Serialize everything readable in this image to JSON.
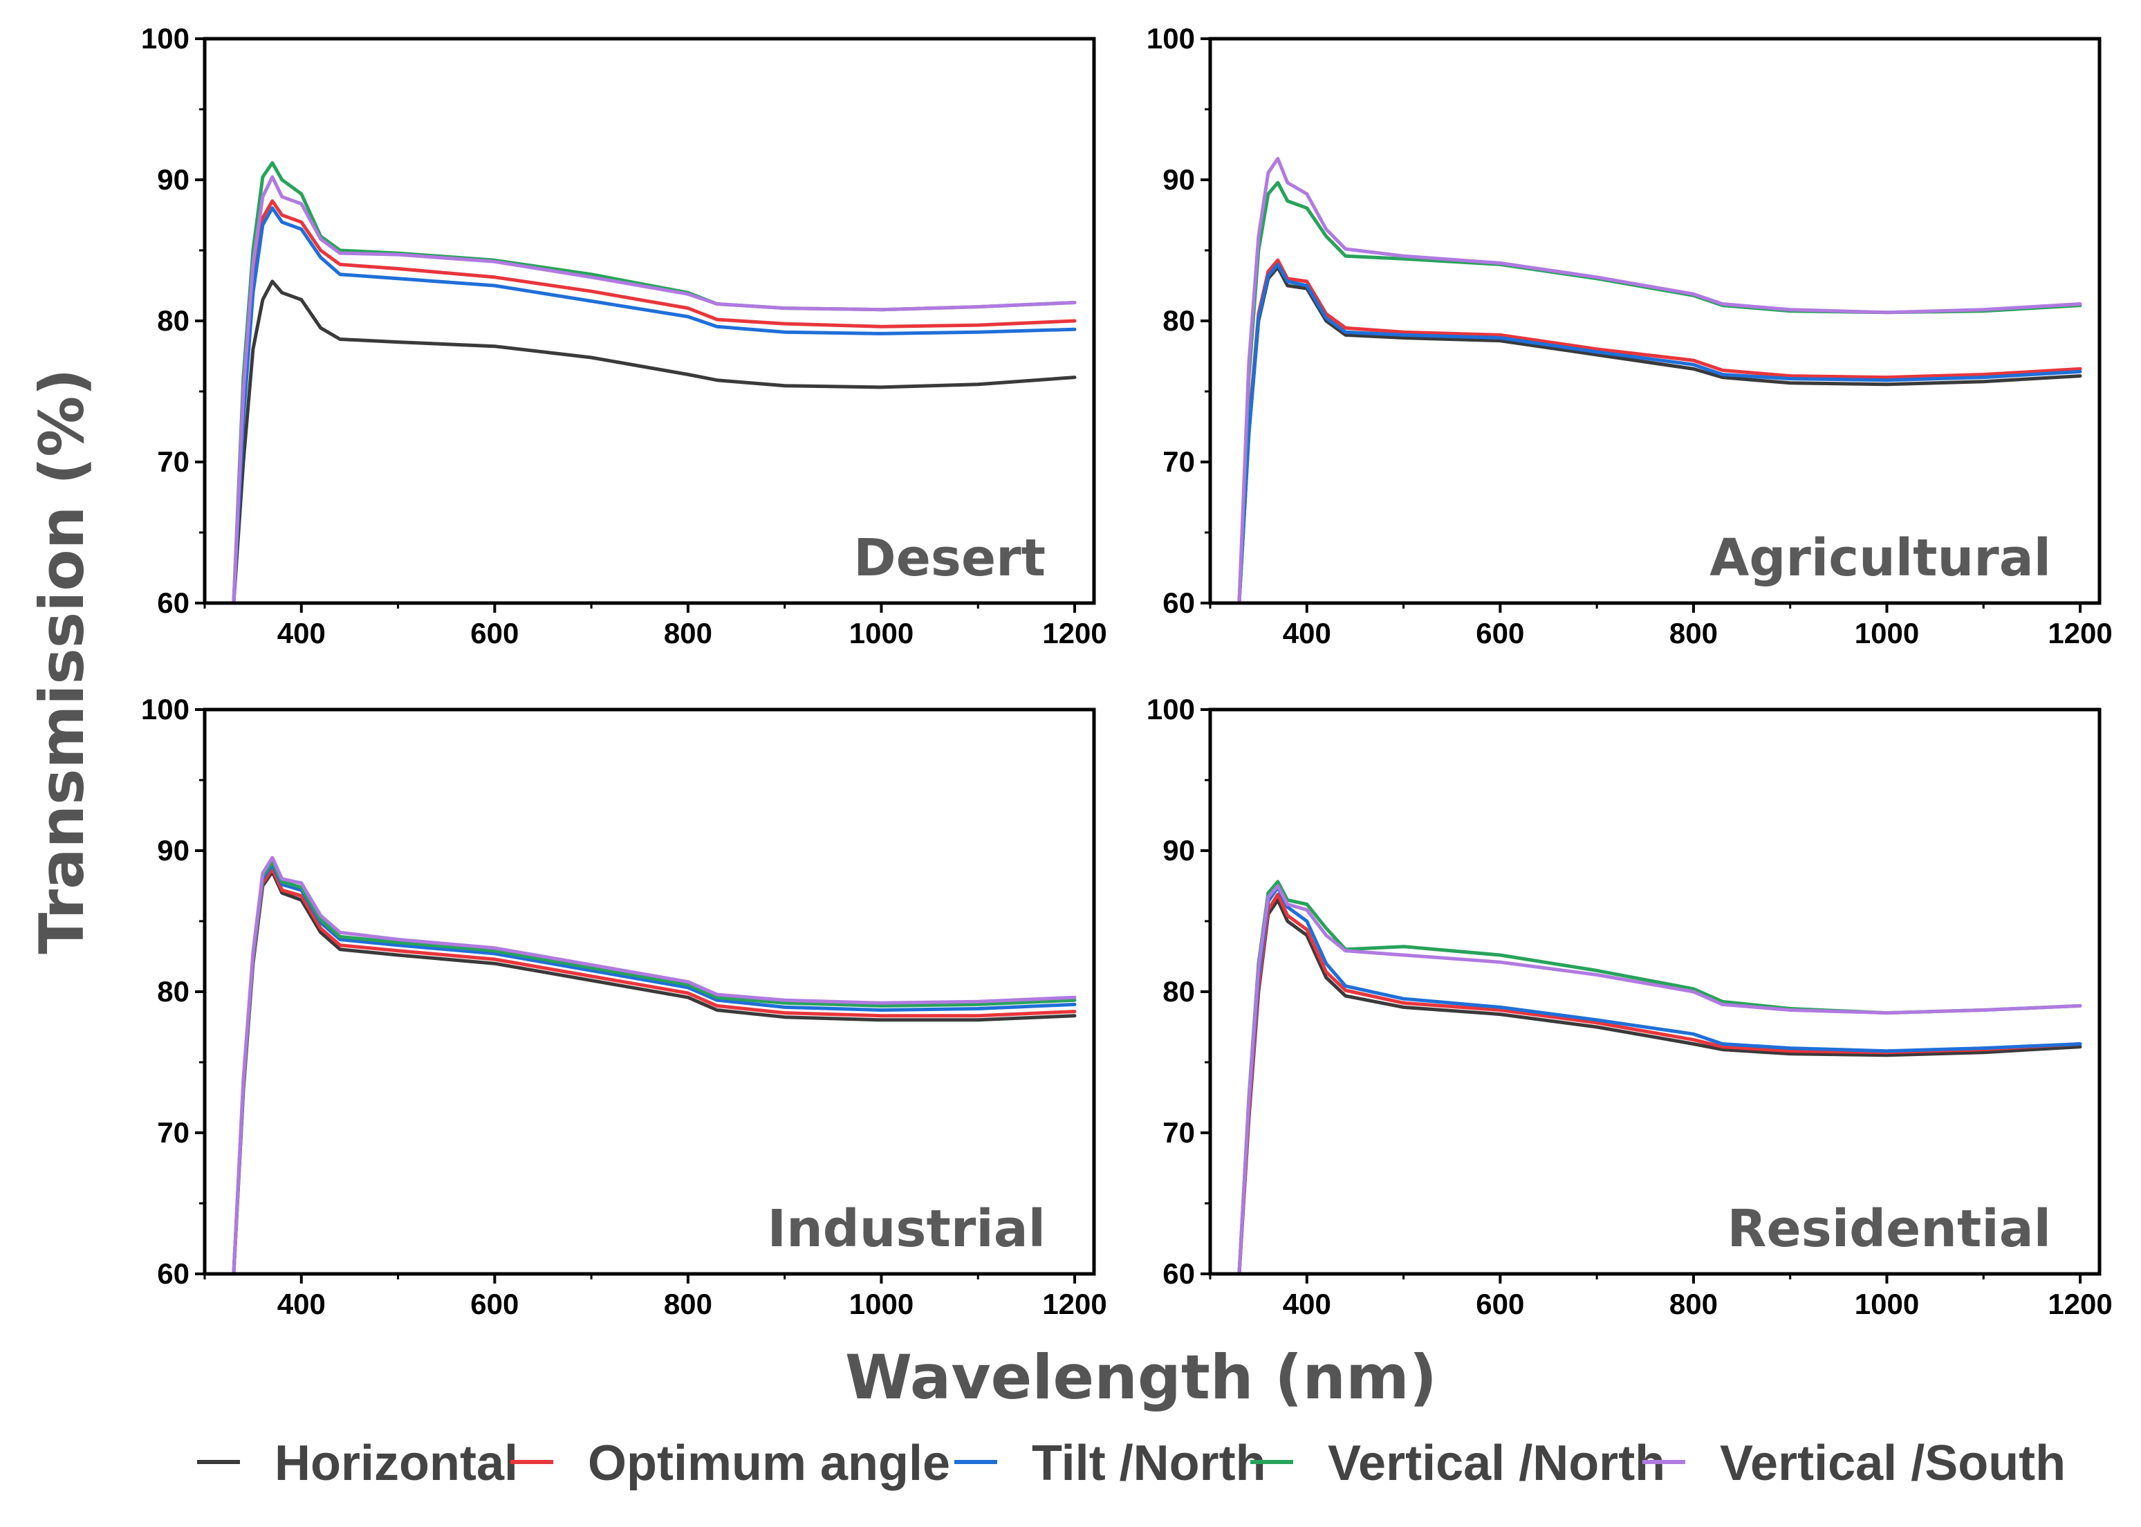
{
  "figure": {
    "ylabel": "Transmission (%)",
    "xlabel": "Wavelength (nm)"
  },
  "legend": [
    {
      "name": "Horizontal",
      "color": "#3a3a3a"
    },
    {
      "name": "Optimum angle",
      "color": "#e8363c"
    },
    {
      "name": "Tilt /North",
      "color": "#1f6fd8"
    },
    {
      "name": "Vertical /North",
      "color": "#27a35a"
    },
    {
      "name": "Vertical /South",
      "color": "#b07ae0"
    }
  ],
  "chart_data": [
    {
      "type": "line",
      "panel_label": "Desert",
      "xlim": [
        300,
        1220
      ],
      "ylim": [
        60,
        100
      ],
      "xticks": [
        400,
        600,
        800,
        1000,
        1200
      ],
      "yticks": [
        60,
        70,
        80,
        90,
        100
      ],
      "x": [
        330,
        340,
        350,
        360,
        370,
        380,
        400,
        420,
        440,
        500,
        600,
        700,
        800,
        830,
        900,
        1000,
        1100,
        1200
      ],
      "series": [
        {
          "name": "Horizontal",
          "color": "#3a3a3a",
          "values": [
            60,
            70,
            78,
            81.5,
            82.8,
            82,
            81.5,
            79.5,
            78.7,
            78.5,
            78.2,
            77.4,
            76.2,
            75.8,
            75.4,
            75.3,
            75.5,
            76
          ]
        },
        {
          "name": "Optimum angle",
          "color": "#e8363c",
          "values": [
            60,
            74,
            83,
            87.3,
            88.5,
            87.5,
            87,
            85,
            84,
            83.7,
            83.1,
            82.1,
            80.9,
            80.1,
            79.8,
            79.6,
            79.7,
            80
          ]
        },
        {
          "name": "Tilt /North",
          "color": "#1f6fd8",
          "values": [
            60,
            73,
            82,
            86.8,
            88,
            87,
            86.5,
            84.5,
            83.3,
            83,
            82.5,
            81.4,
            80.3,
            79.6,
            79.2,
            79.1,
            79.2,
            79.4
          ]
        },
        {
          "name": "Vertical /North",
          "color": "#27a35a",
          "values": [
            60,
            76,
            85,
            90.2,
            91.2,
            90,
            89,
            86,
            85,
            84.8,
            84.3,
            83.3,
            82,
            81.2,
            80.9,
            80.8,
            81,
            81.3
          ]
        },
        {
          "name": "Vertical /South",
          "color": "#b07ae0",
          "values": [
            60,
            75,
            84,
            88.8,
            90.2,
            88.8,
            88.3,
            85.8,
            84.8,
            84.7,
            84.2,
            83.1,
            81.9,
            81.2,
            80.9,
            80.8,
            81,
            81.3
          ]
        }
      ]
    },
    {
      "type": "line",
      "panel_label": "Agricultural",
      "xlim": [
        300,
        1220
      ],
      "ylim": [
        60,
        100
      ],
      "xticks": [
        400,
        600,
        800,
        1000,
        1200
      ],
      "yticks": [
        60,
        70,
        80,
        90,
        100
      ],
      "x": [
        330,
        340,
        350,
        360,
        370,
        380,
        400,
        420,
        440,
        500,
        600,
        700,
        800,
        830,
        900,
        1000,
        1100,
        1200
      ],
      "series": [
        {
          "name": "Horizontal",
          "color": "#3a3a3a",
          "values": [
            60,
            72,
            80,
            83,
            83.8,
            82.5,
            82.3,
            80,
            79,
            78.8,
            78.6,
            77.6,
            76.6,
            76,
            75.6,
            75.5,
            75.7,
            76.1
          ]
        },
        {
          "name": "Optimum angle",
          "color": "#e8363c",
          "values": [
            60,
            72.5,
            80.5,
            83.5,
            84.3,
            83,
            82.8,
            80.5,
            79.5,
            79.2,
            79,
            78,
            77.2,
            76.5,
            76.1,
            76,
            76.2,
            76.6
          ]
        },
        {
          "name": "Tilt /North",
          "color": "#1f6fd8",
          "values": [
            60,
            72,
            80.2,
            83.2,
            84,
            82.8,
            82.5,
            80.2,
            79.2,
            79,
            78.8,
            77.8,
            76.9,
            76.2,
            75.9,
            75.8,
            76,
            76.4
          ]
        },
        {
          "name": "Vertical /North",
          "color": "#27a35a",
          "values": [
            60,
            76,
            85,
            89,
            89.8,
            88.5,
            88,
            86,
            84.6,
            84.4,
            84,
            83,
            81.8,
            81.1,
            80.7,
            80.6,
            80.7,
            81.1
          ]
        },
        {
          "name": "Vertical /South",
          "color": "#b07ae0",
          "values": [
            60,
            77,
            86,
            90.5,
            91.5,
            89.8,
            89,
            86.5,
            85.1,
            84.6,
            84.1,
            83.1,
            81.9,
            81.2,
            80.8,
            80.6,
            80.8,
            81.2
          ]
        }
      ]
    },
    {
      "type": "line",
      "panel_label": "Industrial",
      "xlim": [
        300,
        1220
      ],
      "ylim": [
        60,
        100
      ],
      "xticks": [
        400,
        600,
        800,
        1000,
        1200
      ],
      "yticks": [
        60,
        70,
        80,
        90,
        100
      ],
      "x": [
        330,
        340,
        350,
        360,
        370,
        380,
        400,
        420,
        440,
        500,
        600,
        700,
        800,
        830,
        900,
        1000,
        1100,
        1200
      ],
      "series": [
        {
          "name": "Horizontal",
          "color": "#3a3a3a",
          "values": [
            60,
            73,
            82,
            87.5,
            88.5,
            87,
            86.5,
            84.2,
            83,
            82.6,
            82,
            80.8,
            79.6,
            78.7,
            78.2,
            78,
            78,
            78.3
          ]
        },
        {
          "name": "Optimum angle",
          "color": "#e8363c",
          "values": [
            60,
            73.2,
            82.2,
            87.7,
            88.7,
            87.2,
            86.8,
            84.5,
            83.3,
            82.9,
            82.3,
            81.1,
            79.9,
            79,
            78.5,
            78.3,
            78.3,
            78.6
          ]
        },
        {
          "name": "Tilt /North",
          "color": "#1f6fd8",
          "values": [
            60,
            73.4,
            82.4,
            88,
            89,
            87.6,
            87.2,
            84.9,
            83.7,
            83.3,
            82.7,
            81.5,
            80.3,
            79.4,
            78.9,
            78.7,
            78.8,
            79.1
          ]
        },
        {
          "name": "Vertical /North",
          "color": "#27a35a",
          "values": [
            60,
            73.6,
            82.6,
            88.2,
            89.2,
            87.8,
            87.4,
            85.1,
            83.9,
            83.5,
            82.9,
            81.7,
            80.5,
            79.6,
            79.2,
            79,
            79.1,
            79.4
          ]
        },
        {
          "name": "Vertical /South",
          "color": "#b07ae0",
          "values": [
            60,
            73.8,
            82.8,
            88.4,
            89.5,
            88,
            87.7,
            85.4,
            84.2,
            83.7,
            83.1,
            81.9,
            80.7,
            79.8,
            79.4,
            79.2,
            79.3,
            79.6
          ]
        }
      ]
    },
    {
      "type": "line",
      "panel_label": "Residential",
      "xlim": [
        300,
        1220
      ],
      "ylim": [
        60,
        100
      ],
      "xticks": [
        400,
        600,
        800,
        1000,
        1200
      ],
      "yticks": [
        60,
        70,
        80,
        90,
        100
      ],
      "x": [
        330,
        340,
        350,
        360,
        370,
        380,
        400,
        420,
        440,
        500,
        600,
        700,
        800,
        830,
        900,
        1000,
        1100,
        1200
      ],
      "series": [
        {
          "name": "Horizontal",
          "color": "#3a3a3a",
          "values": [
            60,
            71,
            80,
            85.5,
            86.5,
            85,
            84,
            81,
            79.7,
            78.9,
            78.4,
            77.5,
            76.3,
            75.9,
            75.6,
            75.5,
            75.7,
            76.1
          ]
        },
        {
          "name": "Optimum angle",
          "color": "#e8363c",
          "values": [
            60,
            71.3,
            80.3,
            85.8,
            86.9,
            85.4,
            84.4,
            81.4,
            80.1,
            79.2,
            78.7,
            77.8,
            76.6,
            76.1,
            75.8,
            75.7,
            75.9,
            76.3
          ]
        },
        {
          "name": "Tilt /North",
          "color": "#1f6fd8",
          "values": [
            60,
            72,
            81,
            86.4,
            87.4,
            86,
            85,
            82,
            80.4,
            79.5,
            78.9,
            78,
            77,
            76.3,
            76,
            75.8,
            76,
            76.3
          ]
        },
        {
          "name": "Vertical /North",
          "color": "#27a35a",
          "values": [
            60,
            72.5,
            82,
            87,
            87.8,
            86.5,
            86.2,
            84.5,
            83,
            83.2,
            82.6,
            81.5,
            80.2,
            79.3,
            78.8,
            78.5,
            78.7,
            79
          ]
        },
        {
          "name": "Vertical /South",
          "color": "#b07ae0",
          "values": [
            60,
            72.3,
            81.7,
            86.7,
            87.5,
            86.2,
            85.8,
            84,
            82.9,
            82.6,
            82.1,
            81.2,
            80,
            79.1,
            78.7,
            78.5,
            78.7,
            79
          ]
        }
      ]
    }
  ]
}
